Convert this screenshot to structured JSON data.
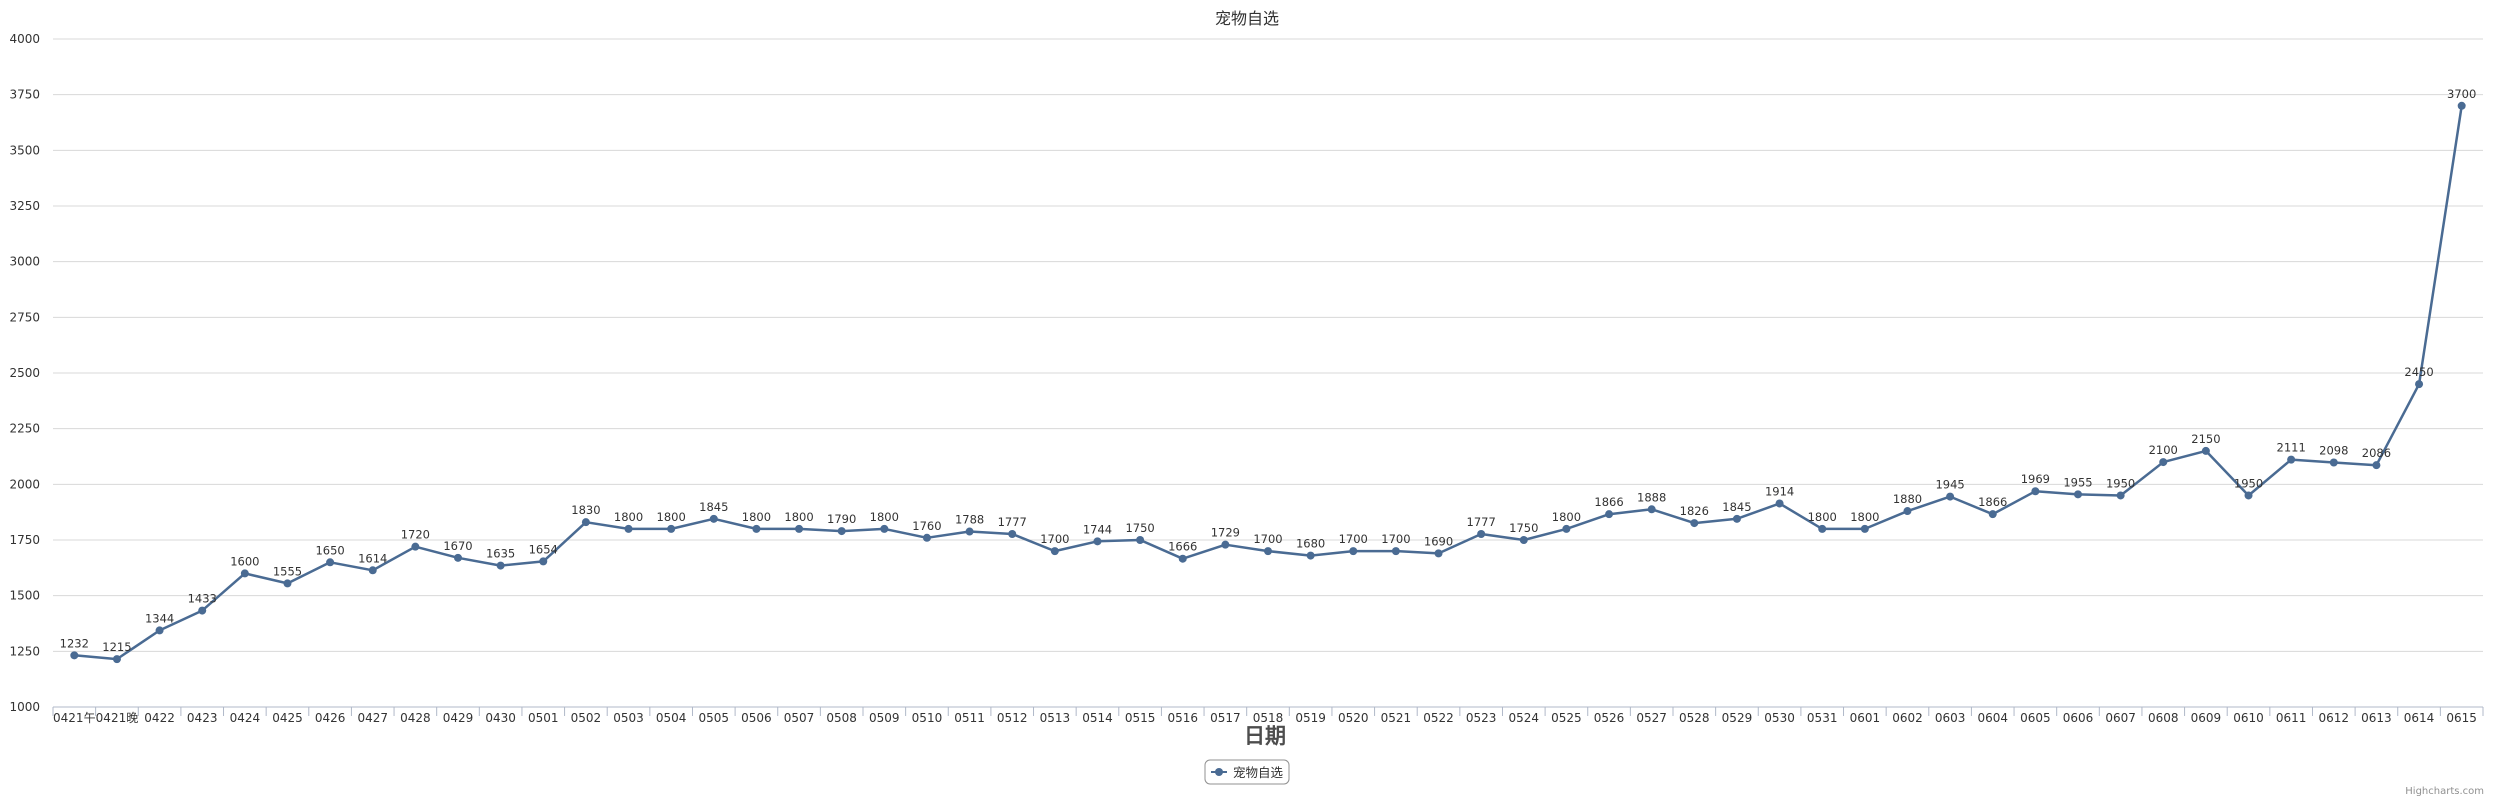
{
  "chart_data": {
    "type": "line",
    "title": "宠物自选",
    "xlabel": "日期",
    "ylabel": "",
    "ylim": [
      1000,
      4000
    ],
    "yticks": [
      1000,
      1250,
      1500,
      1750,
      2000,
      2250,
      2500,
      2750,
      3000,
      3250,
      3500,
      3750,
      4000
    ],
    "grid": true,
    "legend_position": "bottom-center",
    "color": "#4a6b93",
    "categories": [
      "0421午",
      "0421晚",
      "0422",
      "0423",
      "0424",
      "0425",
      "0426",
      "0427",
      "0428",
      "0429",
      "0430",
      "0501",
      "0502",
      "0503",
      "0504",
      "0505",
      "0506",
      "0507",
      "0508",
      "0509",
      "0510",
      "0511",
      "0512",
      "0513",
      "0514",
      "0515",
      "0516",
      "0517",
      "0518",
      "0519",
      "0520",
      "0521",
      "0522",
      "0523",
      "0524",
      "0525",
      "0526",
      "0527",
      "0528",
      "0529",
      "0530",
      "0531",
      "0601",
      "0602",
      "0603",
      "0604",
      "0605",
      "0606",
      "0607",
      "0608",
      "0609",
      "0610",
      "0611",
      "0612",
      "0613",
      "0614",
      "0615"
    ],
    "series": [
      {
        "name": "宠物自选",
        "values": [
          1232,
          1215,
          1344,
          1433,
          1600,
          1555,
          1650,
          1614,
          1720,
          1670,
          1635,
          1654,
          1830,
          1800,
          1800,
          1845,
          1800,
          1800,
          1790,
          1800,
          1760,
          1788,
          1777,
          1700,
          1744,
          1750,
          1666,
          1729,
          1700,
          1680,
          1700,
          1700,
          1690,
          1777,
          1750,
          1800,
          1866,
          1888,
          1826,
          1845,
          1914,
          1800,
          1800,
          1880,
          1945,
          1866,
          1969,
          1955,
          1950,
          2100,
          2150,
          1950,
          2111,
          2098,
          2086,
          2450,
          3700
        ]
      }
    ]
  },
  "legend": {
    "label": "宠物自选"
  },
  "credits": "Highcharts.com"
}
